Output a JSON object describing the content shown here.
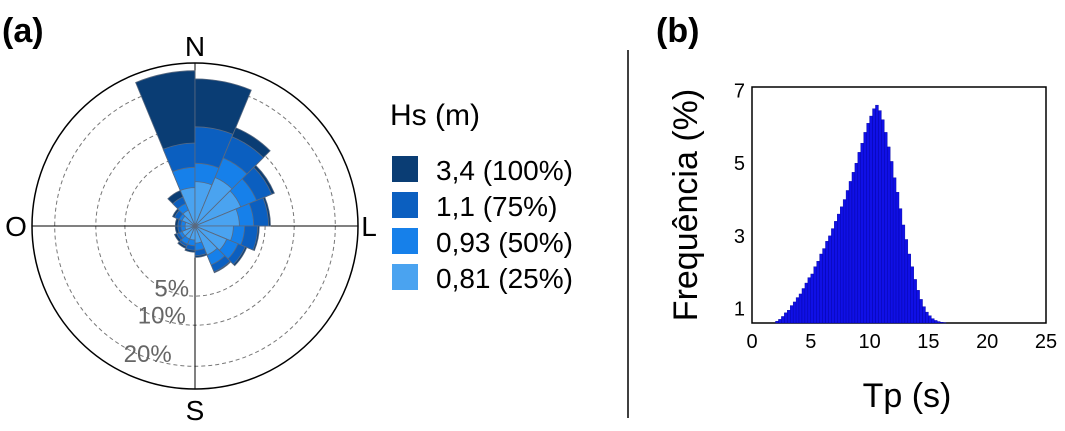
{
  "panels": {
    "a": "(a)",
    "b": "(b)"
  },
  "colors": {
    "bin_3_4": "#0a3d74",
    "bin_1_1": "#0b5fc0",
    "bin_0_93": "#1680ea",
    "bin_0_81": "#4aa3f0",
    "histogram": "#1010e6"
  },
  "chart_data": [
    {
      "type": "wind-rose",
      "title": "",
      "directions_labels": {
        "north": "N",
        "south": "S",
        "west": "O",
        "east": "L"
      },
      "radial_scale": "sqrt",
      "rings": [
        {
          "value": 5,
          "label": "5%"
        },
        {
          "value": 10,
          "label": "10%"
        },
        {
          "value": 20,
          "label": "20%"
        }
      ],
      "outer_ring": 27,
      "legend": {
        "title": "Hs (m)",
        "entries": [
          {
            "label": "3,4 (100%)",
            "color": "#0a3d74"
          },
          {
            "label": "1,1 (75%)",
            "color": "#0b5fc0"
          },
          {
            "label": "0,93 (50%)",
            "color": "#1680ea"
          },
          {
            "label": "0,81 (25%)",
            "color": "#4aa3f0"
          }
        ]
      },
      "sector_width_deg": 22.5,
      "sectors": [
        {
          "direction_deg": 348.75,
          "cumulative": [
            1.5,
            3.5,
            7.0,
            24.5
          ]
        },
        {
          "direction_deg": 11.25,
          "cumulative": [
            2.0,
            4.0,
            10.0,
            22.0
          ]
        },
        {
          "direction_deg": 33.75,
          "cumulative": [
            2.8,
            5.5,
            9.5,
            11.5
          ]
        },
        {
          "direction_deg": 56.25,
          "cumulative": [
            2.5,
            4.5,
            7.0,
            7.5
          ]
        },
        {
          "direction_deg": 78.75,
          "cumulative": [
            2.0,
            3.5,
            5.5,
            5.8
          ]
        },
        {
          "direction_deg": 101.25,
          "cumulative": [
            1.5,
            2.5,
            4.0,
            4.2
          ]
        },
        {
          "direction_deg": 123.75,
          "cumulative": [
            1.2,
            2.2,
            3.0,
            3.2
          ]
        },
        {
          "direction_deg": 146.25,
          "cumulative": [
            1.0,
            1.8,
            2.5,
            2.6
          ]
        },
        {
          "direction_deg": 168.75,
          "cumulative": [
            0.3,
            0.6,
            0.9,
            1.0
          ]
        },
        {
          "direction_deg": 191.25,
          "cumulative": [
            0.2,
            0.4,
            0.6,
            0.7
          ]
        },
        {
          "direction_deg": 213.75,
          "cumulative": [
            0.2,
            0.4,
            0.5,
            0.6
          ]
        },
        {
          "direction_deg": 236.25,
          "cumulative": [
            0.2,
            0.3,
            0.4,
            0.5
          ]
        },
        {
          "direction_deg": 258.75,
          "cumulative": [
            0.1,
            0.2,
            0.3,
            0.4
          ]
        },
        {
          "direction_deg": 281.25,
          "cumulative": [
            0.1,
            0.2,
            0.3,
            0.4
          ]
        },
        {
          "direction_deg": 303.75,
          "cumulative": [
            0.2,
            0.3,
            0.5,
            0.6
          ]
        },
        {
          "direction_deg": 326.25,
          "cumulative": [
            0.3,
            0.6,
            1.0,
            1.5
          ]
        }
      ]
    },
    {
      "type": "bar",
      "title": "",
      "xlabel": "Tp (s)",
      "ylabel": "Frequência (%)",
      "xlim": [
        0,
        25
      ],
      "ylim": [
        0.6,
        7.1
      ],
      "xticks": [
        0,
        5,
        10,
        15,
        20,
        25
      ],
      "yticks": [
        1,
        3,
        5,
        7
      ],
      "bin_width": 0.25,
      "x": [
        2.0,
        2.25,
        2.5,
        2.75,
        3.0,
        3.25,
        3.5,
        3.75,
        4.0,
        4.25,
        4.5,
        4.75,
        5.0,
        5.25,
        5.5,
        5.75,
        6.0,
        6.25,
        6.5,
        6.75,
        7.0,
        7.25,
        7.5,
        7.75,
        8.0,
        8.25,
        8.5,
        8.75,
        9.0,
        9.25,
        9.5,
        9.75,
        10.0,
        10.25,
        10.5,
        10.75,
        11.0,
        11.25,
        11.5,
        11.75,
        12.0,
        12.25,
        12.5,
        12.75,
        13.0,
        13.25,
        13.5,
        13.75,
        14.0,
        14.25,
        14.5,
        14.75,
        15.0,
        15.25,
        15.5,
        15.75,
        16.0,
        16.25,
        16.5
      ],
      "values": [
        0.65,
        0.7,
        0.78,
        0.88,
        0.95,
        1.08,
        1.18,
        1.3,
        1.4,
        1.55,
        1.7,
        1.85,
        1.95,
        2.15,
        2.3,
        2.5,
        2.65,
        2.85,
        3.0,
        3.2,
        3.4,
        3.6,
        3.8,
        4.0,
        4.25,
        4.5,
        4.75,
        5.0,
        5.3,
        5.55,
        5.85,
        6.1,
        6.3,
        6.5,
        6.6,
        6.45,
        6.2,
        5.85,
        5.45,
        5.05,
        4.6,
        4.2,
        3.75,
        3.3,
        2.9,
        2.5,
        2.15,
        1.8,
        1.5,
        1.25,
        1.05,
        0.9,
        0.8,
        0.72,
        0.67,
        0.64,
        0.62,
        0.61,
        0.6
      ]
    }
  ]
}
